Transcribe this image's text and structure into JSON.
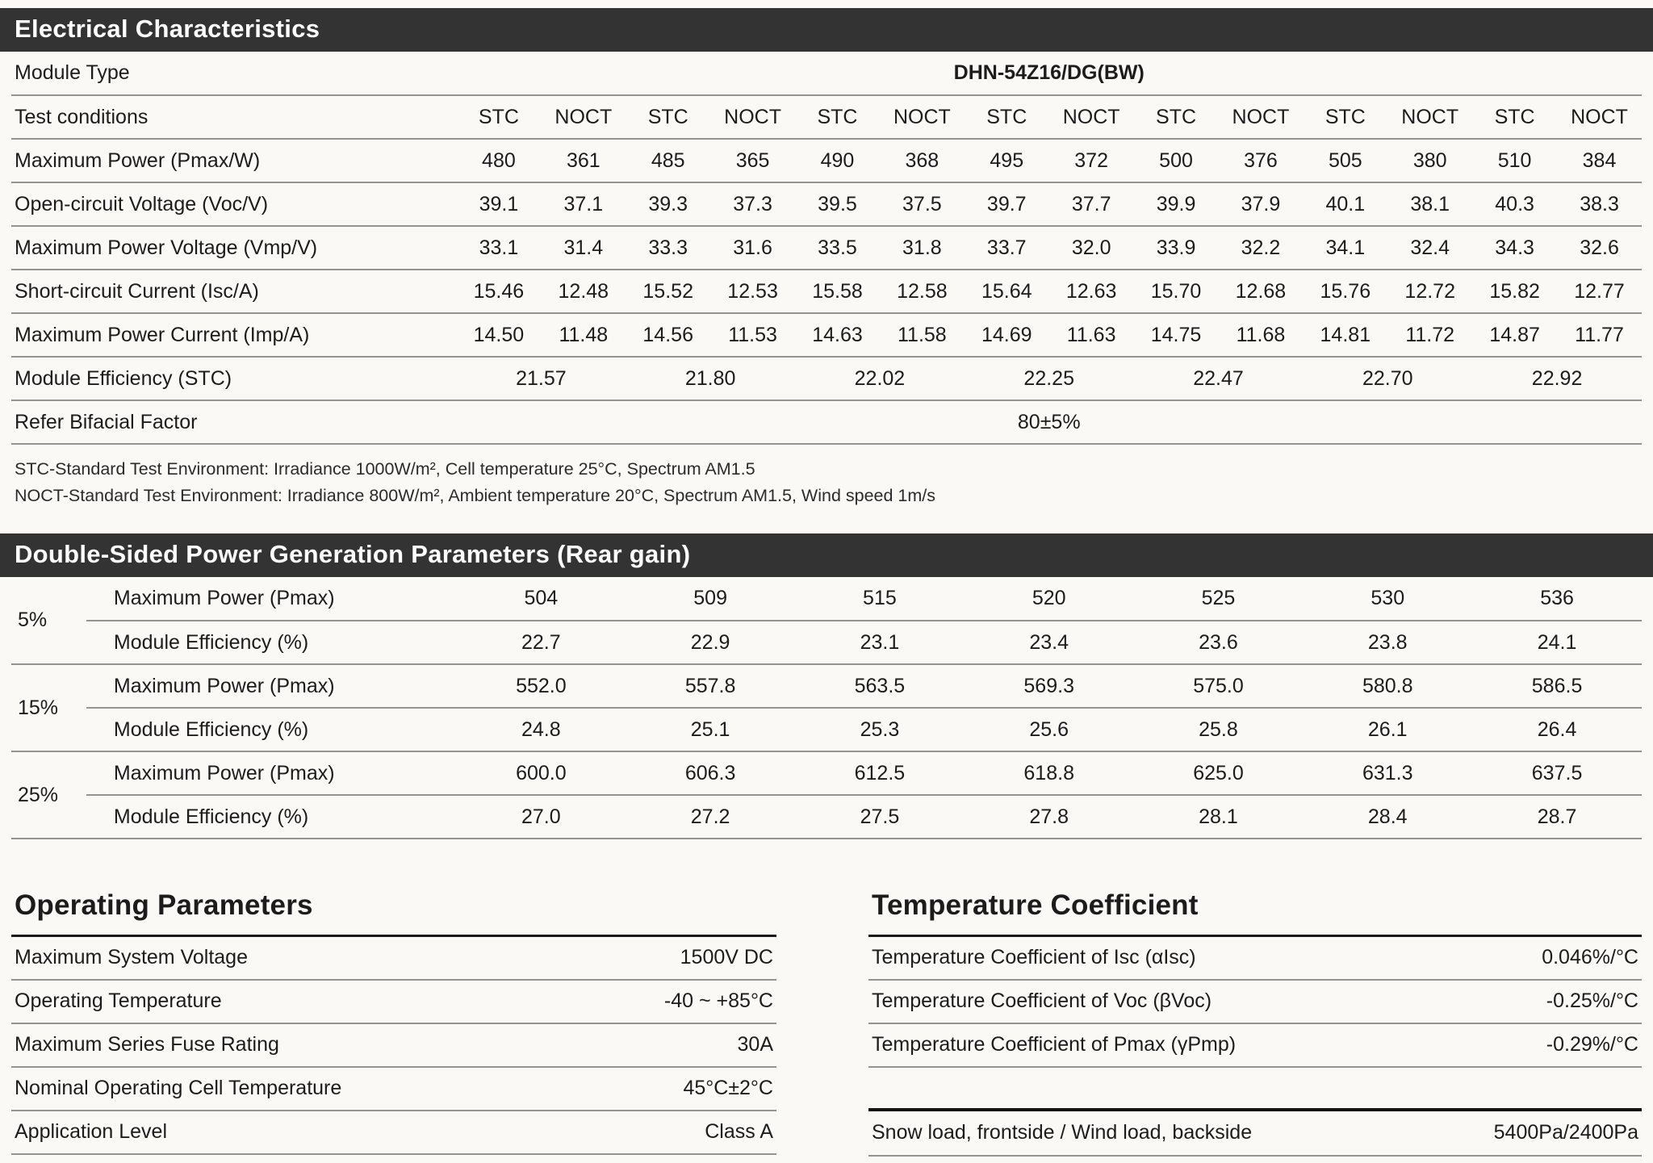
{
  "colors": {
    "page_bg": "#faf9f6",
    "bar_bg": "#333333",
    "bar_text": "#ffffff",
    "text": "#1c1c1c",
    "line": "#949494",
    "heavy_line": "#1a1a1a"
  },
  "electrical": {
    "title": "Electrical Characteristics",
    "module_type_label": "Module Type",
    "module_type_value": "DHN-54Z16/DG(BW)",
    "test_conditions_label": "Test conditions",
    "test_conditions": [
      "STC",
      "NOCT",
      "STC",
      "NOCT",
      "STC",
      "NOCT",
      "STC",
      "NOCT",
      "STC",
      "NOCT",
      "STC",
      "NOCT",
      "STC",
      "NOCT"
    ],
    "rows": [
      {
        "label": "Maximum Power (Pmax/W)",
        "values": [
          "480",
          "361",
          "485",
          "365",
          "490",
          "368",
          "495",
          "372",
          "500",
          "376",
          "505",
          "380",
          "510",
          "384"
        ]
      },
      {
        "label": "Open-circuit Voltage (Voc/V)",
        "values": [
          "39.1",
          "37.1",
          "39.3",
          "37.3",
          "39.5",
          "37.5",
          "39.7",
          "37.7",
          "39.9",
          "37.9",
          "40.1",
          "38.1",
          "40.3",
          "38.3"
        ]
      },
      {
        "label": "Maximum Power Voltage (Vmp/V)",
        "values": [
          "33.1",
          "31.4",
          "33.3",
          "31.6",
          "33.5",
          "31.8",
          "33.7",
          "32.0",
          "33.9",
          "32.2",
          "34.1",
          "32.4",
          "34.3",
          "32.6"
        ]
      },
      {
        "label": "Short-circuit Current (Isc/A)",
        "values": [
          "15.46",
          "12.48",
          "15.52",
          "12.53",
          "15.58",
          "12.58",
          "15.64",
          "12.63",
          "15.70",
          "12.68",
          "15.76",
          "12.72",
          "15.82",
          "12.77"
        ]
      },
      {
        "label": "Maximum Power Current (Imp/A)",
        "values": [
          "14.50",
          "11.48",
          "14.56",
          "11.53",
          "14.63",
          "11.58",
          "14.69",
          "11.63",
          "14.75",
          "11.68",
          "14.81",
          "11.72",
          "14.87",
          "11.77"
        ]
      }
    ],
    "efficiency": {
      "label": "Module Efficiency (STC)",
      "values": [
        "21.57",
        "21.80",
        "22.02",
        "22.25",
        "22.47",
        "22.70",
        "22.92"
      ]
    },
    "bifacial": {
      "label": "Refer Bifacial Factor",
      "value": "80±5%"
    },
    "footnotes": [
      "STC-Standard Test Environment: Irradiance 1000W/m², Cell temperature 25°C, Spectrum AM1.5",
      "NOCT-Standard Test Environment: Irradiance 800W/m², Ambient temperature 20°C, Spectrum AM1.5, Wind speed 1m/s"
    ]
  },
  "rear_gain": {
    "title": "Double-Sided Power Generation Parameters (Rear gain)",
    "groups": [
      {
        "gain": "5%",
        "pmax_label": "Maximum Power (Pmax)",
        "pmax": [
          "504",
          "509",
          "515",
          "520",
          "525",
          "530",
          "536"
        ],
        "eff_label": "Module Efficiency (%)",
        "eff": [
          "22.7",
          "22.9",
          "23.1",
          "23.4",
          "23.6",
          "23.8",
          "24.1"
        ]
      },
      {
        "gain": "15%",
        "pmax_label": "Maximum Power (Pmax)",
        "pmax": [
          "552.0",
          "557.8",
          "563.5",
          "569.3",
          "575.0",
          "580.8",
          "586.5"
        ],
        "eff_label": "Module Efficiency (%)",
        "eff": [
          "24.8",
          "25.1",
          "25.3",
          "25.6",
          "25.8",
          "26.1",
          "26.4"
        ]
      },
      {
        "gain": "25%",
        "pmax_label": "Maximum Power (Pmax)",
        "pmax": [
          "600.0",
          "606.3",
          "612.5",
          "618.8",
          "625.0",
          "631.3",
          "637.5"
        ],
        "eff_label": "Module Efficiency (%)",
        "eff": [
          "27.0",
          "27.2",
          "27.5",
          "27.8",
          "28.1",
          "28.4",
          "28.7"
        ]
      }
    ]
  },
  "operating": {
    "title": "Operating Parameters",
    "rows": [
      {
        "label": "Maximum System Voltage",
        "value": "1500V DC"
      },
      {
        "label": "Operating Temperature",
        "value": "-40 ~ +85°C"
      },
      {
        "label": "Maximum Series Fuse Rating",
        "value": "30A"
      },
      {
        "label": "Nominal Operating Cell Temperature",
        "value": "45°C±2°C"
      },
      {
        "label": "Application Level",
        "value": "Class A"
      }
    ]
  },
  "temperature": {
    "title": "Temperature Coefficient",
    "rows": [
      {
        "label": "Temperature Coefficient of Isc (αIsc)",
        "value": "0.046%/°C"
      },
      {
        "label": "Temperature Coefficient of Voc (βVoc)",
        "value": "-0.25%/°C"
      },
      {
        "label": "Temperature Coefficient of Pmax (γPmp)",
        "value": "-0.29%/°C"
      }
    ],
    "load_row": {
      "label": "Snow load, frontside / Wind load, backside",
      "value": "5400Pa/2400Pa"
    }
  }
}
